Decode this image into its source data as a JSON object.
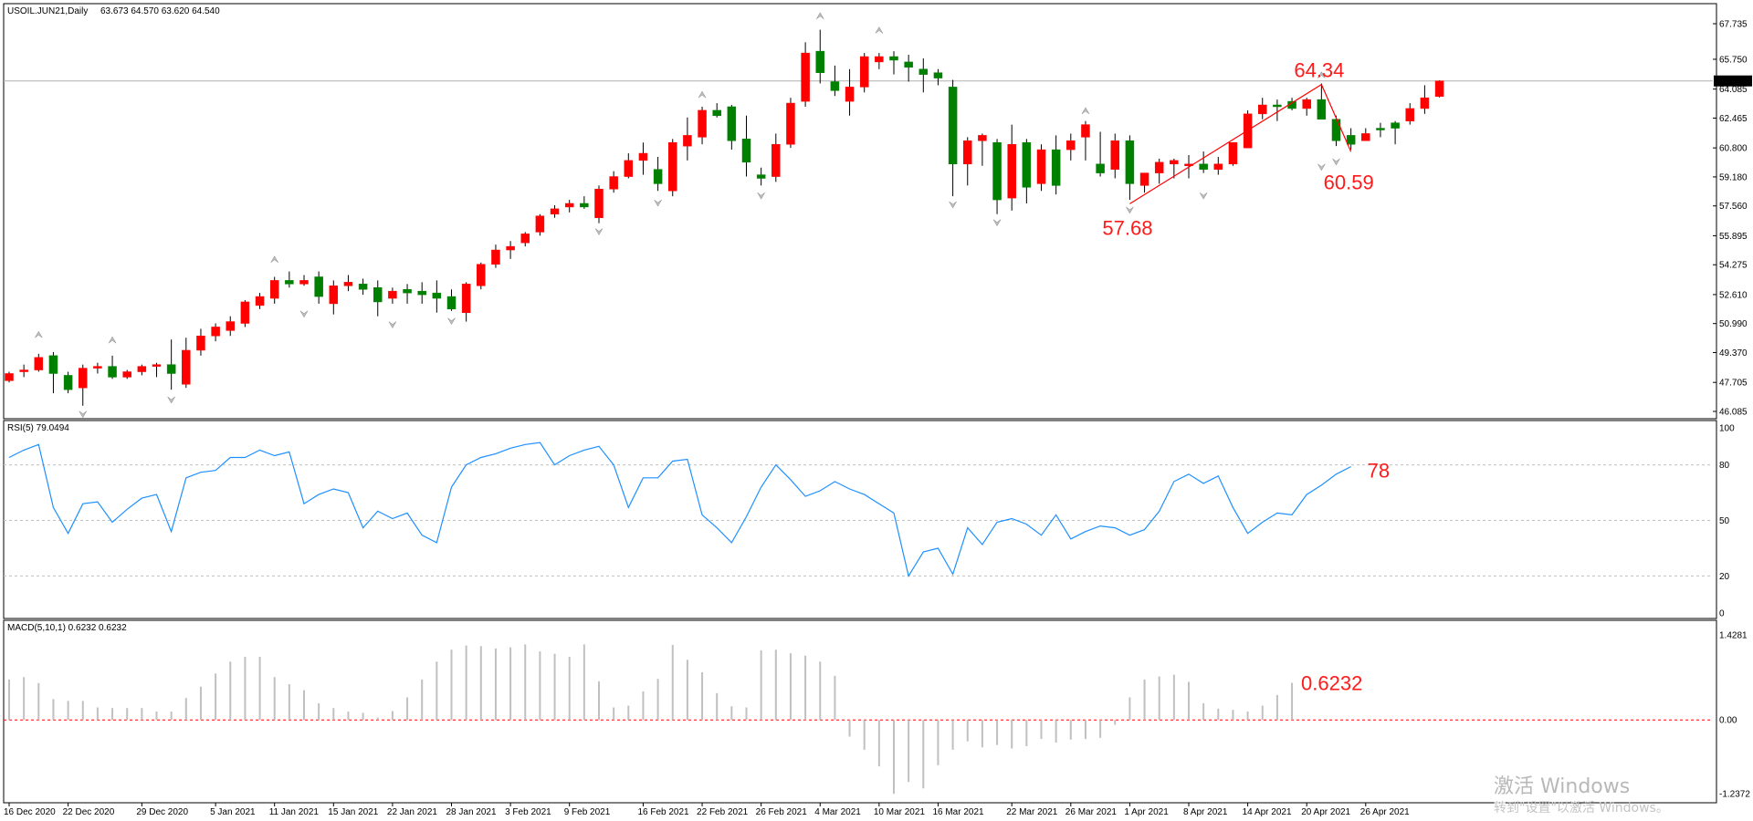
{
  "chart_data": {
    "type": "candlestick",
    "symbol_header": "USOIL.JUN21,Daily",
    "ohlc_header": "63.673 64.570 63.620 64.540",
    "current_price_label": "64.540",
    "current_price": 64.54,
    "up_color": "#ff0000",
    "down_color": "#008000",
    "price_axis": {
      "ylim": [
        46.085,
        67.735
      ],
      "ticks": [
        "67.735",
        "65.750",
        "64.085",
        "62.465",
        "60.800",
        "59.180",
        "57.560",
        "55.895",
        "54.275",
        "52.610",
        "50.990",
        "49.370",
        "47.705",
        "46.085"
      ]
    },
    "x_labels": [
      {
        "i": 0,
        "label": "16 Dec 2020"
      },
      {
        "i": 4,
        "label": "22 Dec 2020"
      },
      {
        "i": 9,
        "label": "29 Dec 2020"
      },
      {
        "i": 14,
        "label": "5 Jan 2021"
      },
      {
        "i": 18,
        "label": "11 Jan 2021"
      },
      {
        "i": 22,
        "label": "15 Jan 2021"
      },
      {
        "i": 26,
        "label": "22 Jan 2021"
      },
      {
        "i": 30,
        "label": "28 Jan 2021"
      },
      {
        "i": 34,
        "label": "3 Feb 2021"
      },
      {
        "i": 38,
        "label": "9 Feb 2021"
      },
      {
        "i": 43,
        "label": "16 Feb 2021"
      },
      {
        "i": 47,
        "label": "22 Feb 2021"
      },
      {
        "i": 51,
        "label": "26 Feb 2021"
      },
      {
        "i": 55,
        "label": "4 Mar 2021"
      },
      {
        "i": 59,
        "label": "10 Mar 2021"
      },
      {
        "i": 63,
        "label": "16 Mar 2021"
      },
      {
        "i": 68,
        "label": "22 Mar 2021"
      },
      {
        "i": 72,
        "label": "26 Mar 2021"
      },
      {
        "i": 76,
        "label": "1 Apr 2021"
      },
      {
        "i": 80,
        "label": "8 Apr 2021"
      },
      {
        "i": 84,
        "label": "14 Apr 2021"
      },
      {
        "i": 88,
        "label": "20 Apr 2021"
      },
      {
        "i": 92,
        "label": "26 Apr 2021"
      }
    ],
    "candles": [
      [
        47.8,
        48.3,
        47.7,
        48.2
      ],
      [
        48.3,
        48.7,
        48.0,
        48.4
      ],
      [
        48.4,
        49.3,
        48.3,
        49.1
      ],
      [
        49.2,
        49.4,
        47.1,
        48.2
      ],
      [
        48.1,
        48.3,
        47.1,
        47.3
      ],
      [
        47.4,
        48.7,
        46.4,
        48.5
      ],
      [
        48.5,
        48.8,
        48.2,
        48.6
      ],
      [
        48.6,
        49.2,
        47.9,
        48.0
      ],
      [
        48.0,
        48.4,
        47.9,
        48.3
      ],
      [
        48.3,
        48.7,
        48.1,
        48.6
      ],
      [
        48.6,
        48.8,
        48.0,
        48.7
      ],
      [
        48.7,
        50.1,
        47.3,
        48.2
      ],
      [
        47.6,
        50.2,
        47.4,
        49.5
      ],
      [
        49.5,
        50.7,
        49.2,
        50.3
      ],
      [
        50.3,
        51.0,
        50.0,
        50.8
      ],
      [
        50.6,
        51.4,
        50.3,
        51.1
      ],
      [
        51.0,
        52.3,
        50.8,
        52.2
      ],
      [
        52.0,
        52.7,
        51.8,
        52.5
      ],
      [
        52.4,
        53.6,
        52.1,
        53.4
      ],
      [
        53.4,
        53.9,
        53.0,
        53.2
      ],
      [
        53.2,
        53.7,
        53.1,
        53.4
      ],
      [
        53.6,
        53.9,
        52.1,
        52.5
      ],
      [
        52.1,
        53.4,
        51.5,
        53.1
      ],
      [
        53.1,
        53.7,
        52.8,
        53.3
      ],
      [
        53.2,
        53.5,
        52.6,
        52.9
      ],
      [
        53.0,
        53.4,
        51.4,
        52.2
      ],
      [
        52.4,
        53.0,
        52.1,
        52.8
      ],
      [
        52.9,
        53.2,
        52.1,
        52.7
      ],
      [
        52.8,
        53.3,
        52.1,
        52.6
      ],
      [
        52.7,
        53.4,
        51.6,
        52.4
      ],
      [
        52.5,
        52.9,
        51.7,
        51.8
      ],
      [
        51.6,
        53.3,
        51.1,
        53.2
      ],
      [
        53.1,
        54.4,
        52.9,
        54.3
      ],
      [
        54.3,
        55.4,
        54.1,
        55.1
      ],
      [
        55.1,
        55.6,
        54.6,
        55.3
      ],
      [
        55.5,
        56.1,
        55.3,
        56.0
      ],
      [
        56.1,
        57.1,
        55.9,
        57.0
      ],
      [
        57.1,
        57.6,
        56.9,
        57.4
      ],
      [
        57.5,
        57.9,
        57.2,
        57.7
      ],
      [
        57.7,
        58.1,
        57.4,
        57.5
      ],
      [
        56.9,
        58.7,
        56.6,
        58.5
      ],
      [
        58.5,
        59.5,
        58.3,
        59.2
      ],
      [
        59.2,
        60.5,
        59.1,
        60.1
      ],
      [
        60.1,
        61.1,
        59.3,
        60.5
      ],
      [
        59.6,
        60.3,
        58.4,
        58.8
      ],
      [
        58.4,
        61.3,
        58.1,
        61.1
      ],
      [
        60.9,
        62.5,
        60.1,
        61.5
      ],
      [
        61.4,
        63.1,
        61.0,
        62.9
      ],
      [
        62.9,
        63.3,
        62.5,
        62.6
      ],
      [
        63.1,
        63.2,
        60.7,
        61.2
      ],
      [
        61.3,
        62.6,
        59.2,
        60.0
      ],
      [
        59.3,
        59.7,
        58.7,
        59.1
      ],
      [
        59.2,
        61.6,
        58.9,
        61.0
      ],
      [
        61.0,
        63.6,
        60.8,
        63.3
      ],
      [
        63.4,
        66.7,
        63.1,
        66.1
      ],
      [
        66.2,
        67.4,
        64.4,
        65.0
      ],
      [
        64.5,
        65.4,
        63.7,
        64.0
      ],
      [
        63.4,
        65.2,
        62.6,
        64.2
      ],
      [
        64.2,
        66.1,
        63.9,
        65.9
      ],
      [
        65.6,
        66.1,
        65.2,
        65.9
      ],
      [
        65.9,
        66.2,
        64.9,
        65.7
      ],
      [
        65.6,
        66.0,
        64.5,
        65.3
      ],
      [
        65.2,
        65.8,
        63.9,
        64.9
      ],
      [
        65.0,
        65.2,
        64.3,
        64.7
      ],
      [
        64.2,
        64.6,
        58.1,
        59.9
      ],
      [
        59.9,
        61.4,
        58.7,
        61.2
      ],
      [
        61.2,
        61.6,
        59.8,
        61.5
      ],
      [
        61.1,
        61.3,
        57.1,
        57.9
      ],
      [
        58.0,
        62.1,
        57.3,
        61.0
      ],
      [
        61.1,
        61.3,
        57.7,
        58.6
      ],
      [
        58.8,
        61.0,
        58.4,
        60.7
      ],
      [
        60.7,
        61.5,
        58.2,
        58.7
      ],
      [
        60.7,
        61.6,
        60.1,
        61.2
      ],
      [
        61.4,
        62.3,
        60.1,
        62.1
      ],
      [
        59.9,
        61.7,
        59.2,
        59.4
      ],
      [
        59.6,
        61.6,
        59.1,
        61.2
      ],
      [
        61.2,
        61.5,
        57.9,
        58.8
      ],
      [
        58.7,
        59.3,
        58.3,
        59.4
      ],
      [
        59.4,
        60.2,
        58.8,
        60.0
      ],
      [
        59.9,
        60.2,
        59.1,
        60.1
      ],
      [
        59.8,
        60.4,
        59.1,
        59.9
      ],
      [
        59.9,
        60.6,
        59.4,
        59.6
      ],
      [
        59.6,
        60.3,
        59.3,
        59.9
      ],
      [
        59.9,
        61.1,
        59.8,
        61.1
      ],
      [
        60.8,
        62.9,
        60.8,
        62.7
      ],
      [
        62.7,
        63.6,
        62.4,
        63.2
      ],
      [
        63.2,
        63.5,
        62.3,
        63.1
      ],
      [
        63.4,
        63.6,
        62.9,
        63.0
      ],
      [
        63.0,
        63.6,
        62.6,
        63.5
      ],
      [
        63.5,
        64.4,
        62.5,
        62.4
      ],
      [
        62.4,
        62.6,
        60.9,
        61.2
      ],
      [
        61.5,
        61.9,
        60.7,
        61.0
      ],
      [
        61.2,
        61.9,
        61.2,
        61.6
      ],
      [
        61.9,
        62.2,
        61.4,
        61.8
      ],
      [
        62.2,
        62.3,
        61.0,
        61.9
      ],
      [
        62.3,
        63.3,
        62.1,
        63.0
      ],
      [
        63.0,
        64.3,
        62.7,
        63.6
      ],
      [
        63.673,
        64.57,
        63.62,
        64.54
      ]
    ],
    "fractals_up": [
      [
        2,
        50.2
      ],
      [
        7,
        49.9
      ],
      [
        18,
        54.4
      ],
      [
        47,
        63.6
      ],
      [
        55,
        68.0
      ],
      [
        59,
        67.2
      ],
      [
        73,
        62.7
      ],
      [
        89,
        64.7
      ]
    ],
    "fractals_down": [
      [
        5,
        46.1
      ],
      [
        11,
        46.9
      ],
      [
        20,
        51.7
      ],
      [
        26,
        51.1
      ],
      [
        30,
        51.3
      ],
      [
        40,
        56.3
      ],
      [
        44,
        57.9
      ],
      [
        51,
        58.3
      ],
      [
        64,
        57.8
      ],
      [
        67,
        56.8
      ],
      [
        76,
        57.5
      ],
      [
        81,
        58.3
      ],
      [
        89,
        59.9
      ],
      [
        90,
        60.2
      ]
    ],
    "zigzag": [
      [
        76,
        57.68
      ],
      [
        89,
        64.34
      ],
      [
        91,
        60.59
      ]
    ],
    "annotations": [
      "64.34",
      "57.68",
      "60.59"
    ],
    "rsi": {
      "header": "RSI(5) 79.0494",
      "annotation": "78",
      "last_value": 79.0494,
      "ylim": [
        0,
        100
      ],
      "levels": [
        20,
        50,
        80
      ],
      "tick_labels": [
        "100",
        "80",
        "50",
        "20",
        "0"
      ],
      "color": "#1e90ff",
      "values": [
        84,
        88,
        91,
        57,
        43,
        59,
        60,
        49,
        56,
        62,
        64,
        44,
        73,
        76,
        77,
        84,
        84,
        88,
        85,
        87,
        59,
        64,
        67,
        65,
        46,
        55,
        51,
        54,
        42,
        38,
        68,
        80,
        84,
        86,
        89,
        91,
        92,
        80,
        85,
        88,
        90,
        80,
        57,
        73,
        73,
        82,
        83,
        53,
        46,
        38,
        52,
        68,
        80,
        72,
        63,
        66,
        71,
        67,
        64,
        59,
        54,
        20,
        33,
        35,
        21,
        46,
        37,
        49,
        51,
        48,
        42,
        53,
        40,
        44,
        47,
        46,
        42,
        45,
        55,
        71,
        75,
        70,
        74,
        57,
        43,
        49,
        54,
        53,
        64,
        69,
        75,
        79.05
      ]
    },
    "macd": {
      "header": "MACD(5,10,1) 0.6232 0.6232",
      "annotation": "0.6232",
      "last_value": 0.6232,
      "ylim": [
        -1.2372,
        1.4281
      ],
      "tick_labels": [
        "1.4281",
        "0.00",
        "-1.2372"
      ],
      "color": "#c0c0c0",
      "signal_color": "#ff0000",
      "values": [
        0.68,
        0.72,
        0.62,
        0.35,
        0.32,
        0.32,
        0.21,
        0.2,
        0.2,
        0.2,
        0.14,
        0.14,
        0.37,
        0.56,
        0.78,
        0.98,
        1.06,
        1.06,
        0.72,
        0.6,
        0.5,
        0.28,
        0.2,
        0.14,
        0.12,
        0.04,
        0.15,
        0.38,
        0.68,
        0.98,
        1.18,
        1.25,
        1.24,
        1.2,
        1.22,
        1.27,
        1.15,
        1.11,
        1.06,
        1.27,
        0.65,
        0.21,
        0.24,
        0.48,
        0.69,
        1.26,
        1.01,
        0.8,
        0.45,
        0.23,
        0.21,
        1.17,
        1.18,
        1.12,
        1.08,
        0.98,
        0.74,
        -0.28,
        -0.5,
        -0.78,
        -1.24,
        -1.04,
        -1.15,
        -0.76,
        -0.5,
        -0.36,
        -0.46,
        -0.42,
        -0.48,
        -0.44,
        -0.32,
        -0.38,
        -0.33,
        -0.32,
        -0.3,
        -0.08,
        0.38,
        0.68,
        0.73,
        0.76,
        0.64,
        0.28,
        0.19,
        0.17,
        0.14,
        0.24,
        0.42,
        0.6232
      ]
    }
  },
  "watermark": {
    "line1": "激活 Windows",
    "line2": "转到\"设置\"以激活 Windows。"
  }
}
